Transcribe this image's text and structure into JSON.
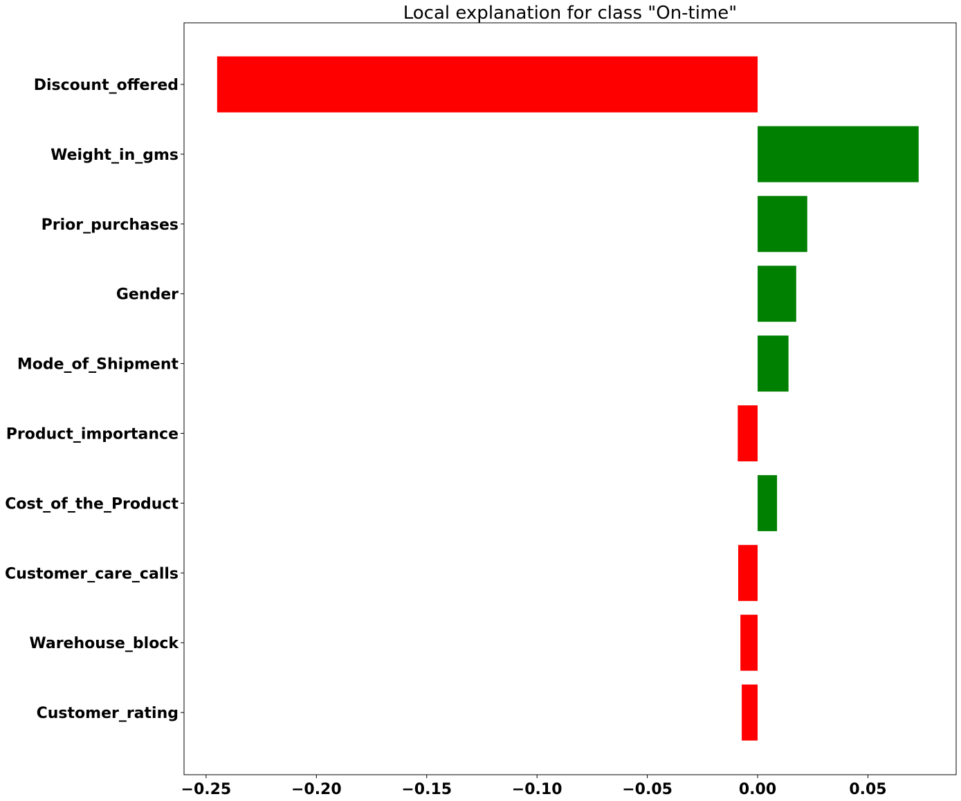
{
  "chart_data": {
    "type": "bar",
    "orientation": "horizontal",
    "title": "Local explanation for class \"On-time\"",
    "xlabel": "",
    "ylabel": "",
    "xlim": [
      -0.26,
      0.09
    ],
    "grid": false,
    "legend": "none",
    "positive_color": "#008000",
    "negative_color": "#ff0000",
    "categories": [
      "Discount_offered",
      "Weight_in_gms",
      "Prior_purchases",
      "Gender",
      "Mode_of_Shipment",
      "Product_importance",
      "Cost_of_the_Product",
      "Customer_care_calls",
      "Warehouse_block",
      "Customer_rating"
    ],
    "values": [
      -0.245,
      0.073,
      0.0225,
      0.0175,
      0.014,
      -0.009,
      0.0088,
      -0.0088,
      -0.0078,
      -0.0072
    ],
    "x_ticks": [
      -0.25,
      -0.2,
      -0.15,
      -0.1,
      -0.05,
      0.0,
      0.05
    ],
    "x_tick_labels": [
      "−0.25",
      "−0.20",
      "−0.15",
      "−0.10",
      "−0.05",
      "0.00",
      "0.05"
    ]
  }
}
